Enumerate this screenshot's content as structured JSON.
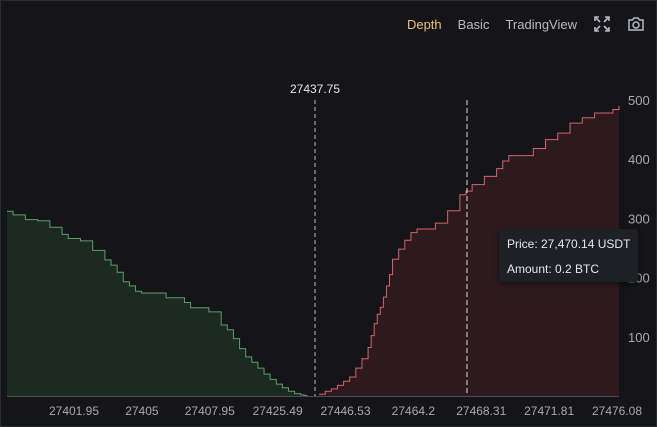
{
  "toolbar": {
    "tabs": [
      {
        "label": "Depth",
        "active": true
      },
      {
        "label": "Basic",
        "active": false
      },
      {
        "label": "TradingView",
        "active": false
      }
    ],
    "icons": [
      "fullscreen-icon",
      "camera-icon"
    ]
  },
  "tooltip": {
    "price_text": "Price: 27,470.14 USDT",
    "amount_text": "Amount: 0.2 BTC"
  },
  "colors": {
    "bid_line": "#5a9e6a",
    "bid_fill": "#1c2a22",
    "ask_line": "#d9626a",
    "ask_fill": "#2c1a1f",
    "active_tab": "#e8c178",
    "axis_text": "#a6a9b0"
  },
  "chart_data": {
    "type": "area",
    "title": "",
    "mid_price_label": "27437.75",
    "x_tick_labels": [
      "27401.95",
      "27405",
      "27407.95",
      "27425.49",
      "27446.53",
      "27464.2",
      "27468.31",
      "27471.81",
      "27476.08"
    ],
    "y_ticks": [
      100,
      200,
      300,
      400,
      500
    ],
    "ylim": [
      0,
      500
    ],
    "y_axis_position": "right",
    "grid": false,
    "hover_price": 27470.14,
    "series": [
      {
        "side": "bids",
        "x": [
          0,
          0.01,
          0.03,
          0.05,
          0.07,
          0.09,
          0.1,
          0.12,
          0.14,
          0.16,
          0.17,
          0.18,
          0.19,
          0.2,
          0.21,
          0.22,
          0.26,
          0.29,
          0.3,
          0.33,
          0.35,
          0.36,
          0.37,
          0.38,
          0.39,
          0.4,
          0.41,
          0.42,
          0.43,
          0.44,
          0.45,
          0.46,
          0.47,
          0.48,
          0.485,
          0.49
        ],
        "values": [
          312,
          306,
          298,
          296,
          285,
          273,
          266,
          262,
          246,
          230,
          221,
          209,
          193,
          186,
          177,
          174,
          166,
          158,
          149,
          142,
          120,
          112,
          97,
          80,
          66,
          57,
          47,
          37,
          28,
          20,
          14,
          8,
          4,
          2,
          1,
          0
        ]
      },
      {
        "side": "asks",
        "x": [
          0.51,
          0.52,
          0.53,
          0.54,
          0.55,
          0.56,
          0.57,
          0.58,
          0.59,
          0.595,
          0.6,
          0.605,
          0.61,
          0.615,
          0.62,
          0.625,
          0.63,
          0.64,
          0.65,
          0.66,
          0.67,
          0.7,
          0.72,
          0.74,
          0.75,
          0.76,
          0.78,
          0.8,
          0.81,
          0.82,
          0.86,
          0.88,
          0.9,
          0.92,
          0.94,
          0.96,
          0.99,
          1.0
        ],
        "values": [
          3,
          8,
          12,
          18,
          25,
          32,
          47,
          63,
          82,
          102,
          122,
          138,
          150,
          167,
          186,
          205,
          231,
          248,
          263,
          276,
          282,
          292,
          313,
          340,
          346,
          357,
          371,
          384,
          397,
          406,
          418,
          433,
          444,
          461,
          470,
          478,
          484,
          490
        ]
      }
    ]
  }
}
